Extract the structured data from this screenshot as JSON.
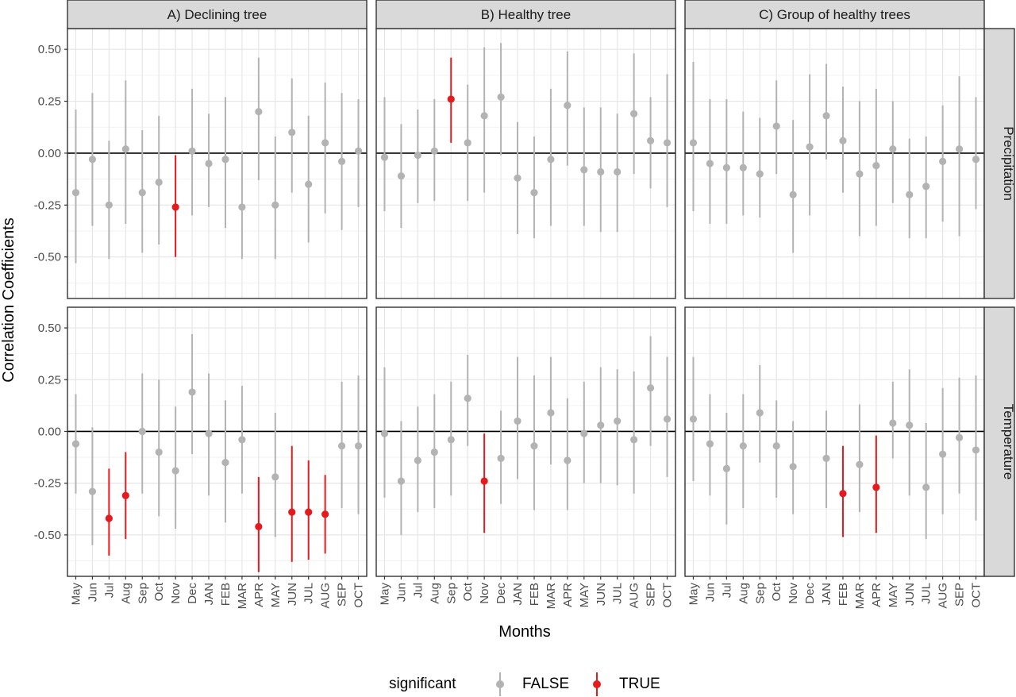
{
  "chart_data": {
    "type": "scatter",
    "subtype": "point-range faceted",
    "xlabel": "Months",
    "ylabel": "Correlation Coefficients",
    "ylim": [
      -0.7,
      0.6
    ],
    "yticks": [
      0.5,
      0.25,
      0.0,
      -0.25,
      -0.5
    ],
    "ytick_labels": [
      "0.50",
      "0.25",
      "0.00",
      "-0.25",
      "-0.50"
    ],
    "months": [
      "May",
      "Jun",
      "Jul",
      "Aug",
      "Sep",
      "Oct",
      "Nov",
      "Dec",
      "JAN",
      "FEB",
      "MAR",
      "APR",
      "MAY",
      "JUN",
      "JUL",
      "AUG",
      "SEP",
      "OCT"
    ],
    "columns": [
      "A) Declining tree",
      "B) Healthy tree",
      "C) Group of healthy trees"
    ],
    "rows": [
      "Precipitation",
      "Temperature"
    ],
    "grid": true,
    "reference_line_y": 0,
    "legend": {
      "title": "significant",
      "position": "bottom",
      "entries": [
        {
          "label": "FALSE",
          "color": "#b3b3b3"
        },
        {
          "label": "TRUE",
          "color": "#e41a1c"
        }
      ]
    },
    "colors": {
      "false": "#b3b3b3",
      "true": "#e41a1c",
      "strip_bg": "#d9d9d9",
      "grid": "#ebebeb"
    },
    "panels": [
      {
        "column": 0,
        "row": 0,
        "values": [
          -0.19,
          -0.03,
          -0.25,
          0.02,
          -0.19,
          -0.14,
          -0.26,
          0.01,
          -0.05,
          -0.03,
          -0.26,
          0.2,
          -0.25,
          0.1,
          -0.15,
          0.05,
          -0.04,
          0.01
        ],
        "lower": [
          -0.53,
          -0.35,
          -0.51,
          -0.34,
          -0.48,
          -0.44,
          -0.5,
          -0.3,
          -0.26,
          -0.36,
          -0.51,
          -0.13,
          -0.51,
          -0.19,
          -0.43,
          -0.29,
          -0.37,
          -0.26
        ],
        "upper": [
          0.21,
          0.29,
          0.06,
          0.35,
          0.11,
          0.18,
          -0.01,
          0.31,
          0.19,
          0.27,
          0.01,
          0.46,
          0.08,
          0.36,
          0.18,
          0.34,
          0.29,
          0.26
        ],
        "significant": [
          false,
          false,
          false,
          false,
          false,
          false,
          true,
          false,
          false,
          false,
          false,
          false,
          false,
          false,
          false,
          false,
          false,
          false
        ]
      },
      {
        "column": 1,
        "row": 0,
        "values": [
          -0.02,
          -0.11,
          -0.01,
          0.01,
          0.26,
          0.05,
          0.18,
          0.27,
          -0.12,
          -0.19,
          -0.03,
          0.23,
          -0.08,
          -0.09,
          -0.09,
          0.19,
          0.06,
          0.05
        ],
        "lower": [
          -0.28,
          -0.36,
          -0.24,
          -0.23,
          0.05,
          -0.23,
          -0.19,
          -0.01,
          -0.39,
          -0.41,
          -0.35,
          -0.06,
          -0.35,
          -0.38,
          -0.38,
          -0.1,
          -0.17,
          -0.26
        ],
        "upper": [
          0.27,
          0.14,
          0.21,
          0.26,
          0.46,
          0.33,
          0.51,
          0.53,
          0.15,
          0.08,
          0.31,
          0.49,
          0.22,
          0.22,
          0.19,
          0.48,
          0.27,
          0.38
        ],
        "significant": [
          false,
          false,
          false,
          false,
          true,
          false,
          false,
          false,
          false,
          false,
          false,
          false,
          false,
          false,
          false,
          false,
          false,
          false
        ]
      },
      {
        "column": 2,
        "row": 0,
        "values": [
          0.05,
          -0.05,
          -0.07,
          -0.07,
          -0.1,
          0.13,
          -0.2,
          0.03,
          0.18,
          0.06,
          -0.1,
          -0.06,
          0.02,
          -0.2,
          -0.16,
          -0.04,
          0.02,
          -0.03
        ],
        "lower": [
          -0.28,
          -0.34,
          -0.34,
          -0.3,
          -0.31,
          -0.1,
          -0.48,
          -0.3,
          -0.03,
          -0.19,
          -0.4,
          -0.35,
          -0.24,
          -0.41,
          -0.41,
          -0.33,
          -0.4,
          -0.27
        ],
        "upper": [
          0.44,
          0.26,
          0.26,
          0.2,
          0.17,
          0.35,
          0.16,
          0.38,
          0.43,
          0.32,
          0.25,
          0.31,
          0.25,
          0.07,
          0.08,
          0.23,
          0.37,
          0.27
        ],
        "significant": [
          false,
          false,
          false,
          false,
          false,
          false,
          false,
          false,
          false,
          false,
          false,
          false,
          false,
          false,
          false,
          false,
          false,
          false
        ]
      },
      {
        "column": 0,
        "row": 1,
        "values": [
          -0.06,
          -0.29,
          -0.42,
          -0.31,
          0.0,
          -0.1,
          -0.19,
          0.19,
          -0.01,
          -0.15,
          -0.04,
          -0.46,
          -0.22,
          -0.39,
          -0.39,
          -0.4,
          -0.07,
          -0.07
        ],
        "lower": [
          -0.3,
          -0.55,
          -0.6,
          -0.52,
          -0.3,
          -0.41,
          -0.47,
          -0.11,
          -0.31,
          -0.44,
          -0.3,
          -0.68,
          -0.51,
          -0.63,
          -0.62,
          -0.59,
          -0.37,
          -0.4
        ],
        "upper": [
          0.18,
          0.02,
          -0.18,
          -0.1,
          0.28,
          0.25,
          0.12,
          0.47,
          0.28,
          0.15,
          0.22,
          -0.22,
          0.09,
          -0.07,
          -0.14,
          -0.21,
          0.24,
          0.27
        ],
        "significant": [
          false,
          false,
          true,
          true,
          false,
          false,
          false,
          false,
          false,
          false,
          false,
          true,
          false,
          true,
          true,
          true,
          false,
          false
        ]
      },
      {
        "column": 1,
        "row": 1,
        "values": [
          -0.01,
          -0.24,
          -0.14,
          -0.1,
          -0.04,
          0.16,
          -0.24,
          -0.13,
          0.05,
          -0.07,
          0.09,
          -0.14,
          -0.01,
          0.03,
          0.05,
          -0.04,
          0.21,
          0.06
        ],
        "lower": [
          -0.32,
          -0.5,
          -0.39,
          -0.37,
          -0.31,
          -0.07,
          -0.49,
          -0.35,
          -0.23,
          -0.38,
          -0.16,
          -0.38,
          -0.25,
          -0.25,
          -0.26,
          -0.3,
          -0.07,
          -0.22
        ],
        "upper": [
          0.31,
          0.05,
          0.12,
          0.18,
          0.24,
          0.37,
          -0.01,
          0.1,
          0.36,
          0.27,
          0.36,
          0.16,
          0.24,
          0.31,
          0.3,
          0.29,
          0.46,
          0.36
        ],
        "significant": [
          false,
          false,
          false,
          false,
          false,
          false,
          true,
          false,
          false,
          false,
          false,
          false,
          false,
          false,
          false,
          false,
          false,
          false
        ]
      },
      {
        "column": 2,
        "row": 1,
        "values": [
          0.06,
          -0.06,
          -0.18,
          -0.07,
          0.09,
          -0.07,
          -0.17,
          -0.13,
          -0.3,
          -0.16,
          -0.27,
          0.04,
          0.03,
          -0.27,
          -0.11,
          -0.03,
          -0.09
        ],
        "lower": [
          -0.24,
          -0.31,
          -0.45,
          -0.37,
          -0.15,
          -0.32,
          -0.4,
          -0.37,
          -0.51,
          -0.39,
          -0.49,
          -0.13,
          -0.31,
          -0.52,
          -0.4,
          -0.3,
          -0.43
        ],
        "upper": [
          0.36,
          0.18,
          0.09,
          0.18,
          0.32,
          0.15,
          0.05,
          0.1,
          -0.07,
          0.13,
          -0.02,
          0.24,
          0.3,
          0.04,
          0.21,
          0.26,
          0.27
        ],
        "significant": [
          false,
          false,
          false,
          false,
          false,
          false,
          false,
          false,
          true,
          false,
          true,
          false,
          false,
          false,
          false,
          false,
          false
        ],
        "month_index": [
          0,
          1,
          2,
          3,
          4,
          5,
          6,
          8,
          9,
          10,
          11,
          12,
          13,
          14,
          15,
          16,
          17
        ]
      }
    ]
  }
}
